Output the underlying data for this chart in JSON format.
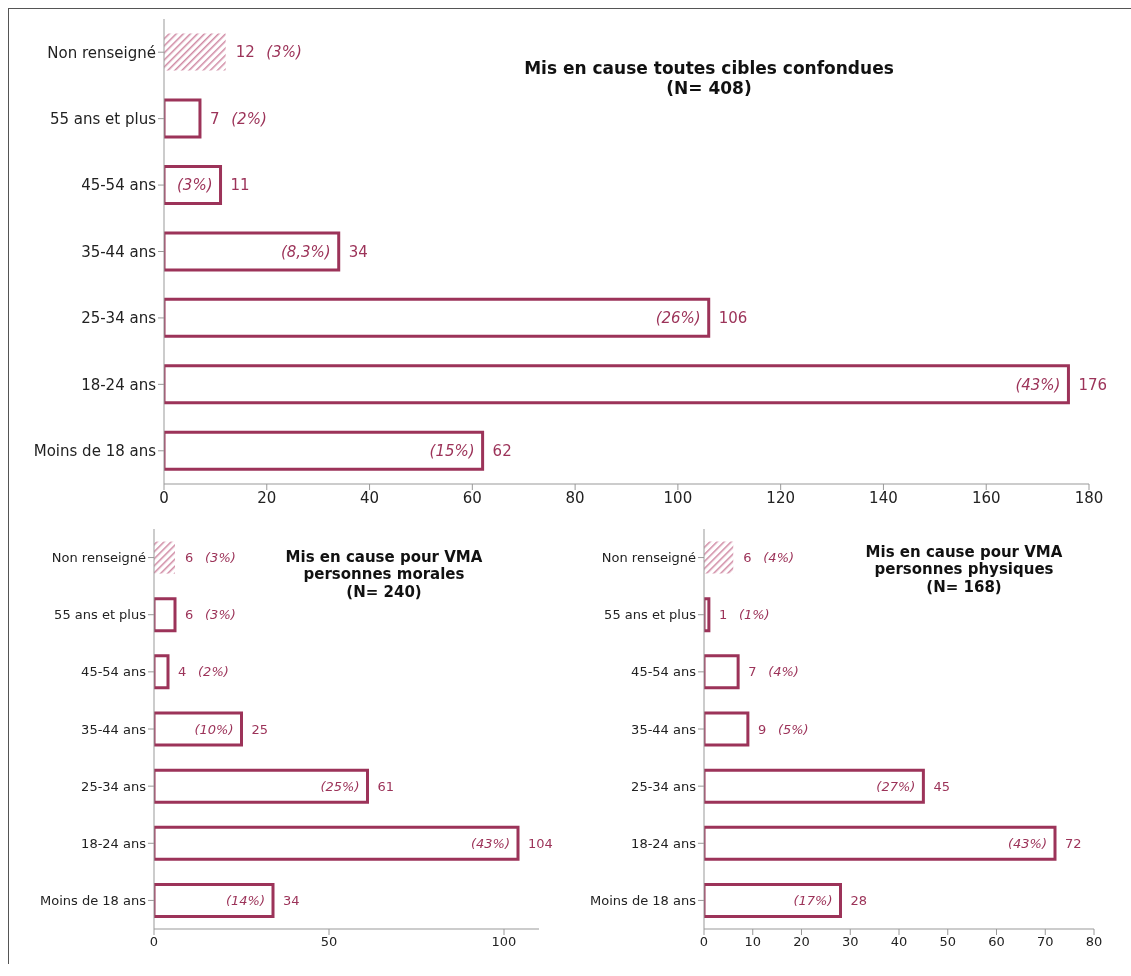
{
  "chart_data": [
    {
      "type": "bar",
      "orientation": "horizontal",
      "title": "Mis en cause toutes cibles confondues\n(N= 408)",
      "categories": [
        "Non renseigné",
        "55 ans et plus",
        "45-54 ans",
        "35-44 ans",
        "25-34 ans",
        "18-24 ans",
        "Moins de 18 ans"
      ],
      "values": [
        12,
        7,
        11,
        34,
        106,
        176,
        62
      ],
      "color": "#9c3359",
      "colors": [
        "#d08aa4",
        "#9c3359",
        "#9c3359",
        "#9c3359",
        "#9c3359",
        "#9c3359",
        "#9c3359"
      ],
      "xlim": [
        0,
        180
      ],
      "xticks": [
        0,
        20,
        40,
        60,
        80,
        100,
        120,
        140,
        160,
        180
      ],
      "grid": false,
      "legend": false,
      "data_labels": true,
      "annotations": [
        {
          "text": "(3%)",
          "x": 12,
          "y": "Non renseigné"
        },
        {
          "text": "(2%)",
          "x": 7,
          "y": "55 ans et plus"
        },
        {
          "text": "(3%)",
          "x": 11,
          "y": "45-54 ans"
        },
        {
          "text": "(8,3%)",
          "x": 34,
          "y": "35-44 ans"
        },
        {
          "text": "(26%)",
          "x": 106,
          "y": "25-34 ans"
        },
        {
          "text": "(43%)",
          "x": 176,
          "y": "18-24 ans"
        },
        {
          "text": "(15%)",
          "x": 62,
          "y": "Moins de 18 ans"
        }
      ]
    },
    {
      "type": "bar",
      "orientation": "horizontal",
      "title": "Mis en cause pour VMA\npersonnes morales\n(N= 240)",
      "categories": [
        "Non renseigné",
        "55 ans et plus",
        "45-54 ans",
        "35-44 ans",
        "25-34 ans",
        "18-24 ans",
        "Moins de 18 ans"
      ],
      "values": [
        6,
        6,
        4,
        25,
        61,
        104,
        34
      ],
      "color": "#9c3359",
      "colors": [
        "#d08aa4",
        "#9c3359",
        "#9c3359",
        "#9c3359",
        "#9c3359",
        "#9c3359",
        "#9c3359"
      ],
      "xlim": [
        0,
        110
      ],
      "xticks": [
        0,
        50,
        100
      ],
      "grid": false,
      "legend": false,
      "data_labels": true,
      "annotations": [
        {
          "text": "(3%)",
          "x": 6,
          "y": "Non renseigné"
        },
        {
          "text": "(3%)",
          "x": 6,
          "y": "55 ans et plus"
        },
        {
          "text": "(2%)",
          "x": 4,
          "y": "45-54 ans"
        },
        {
          "text": "(10%)",
          "x": 25,
          "y": "35-44 ans"
        },
        {
          "text": "(25%)",
          "x": 61,
          "y": "25-34 ans"
        },
        {
          "text": "(43%)",
          "x": 104,
          "y": "18-24 ans"
        },
        {
          "text": "(14%)",
          "x": 34,
          "y": "Moins de 18 ans"
        }
      ]
    },
    {
      "type": "bar",
      "orientation": "horizontal",
      "title": "Mis en cause pour VMA\npersonnes physiques\n(N= 168)",
      "categories": [
        "Non renseigné",
        "55 ans et plus",
        "45-54 ans",
        "35-44 ans",
        "25-34 ans",
        "18-24 ans",
        "Moins de 18 ans"
      ],
      "values": [
        6,
        1,
        7,
        9,
        45,
        72,
        28
      ],
      "color": "#9c3359",
      "colors": [
        "#d08aa4",
        "#9c3359",
        "#9c3359",
        "#9c3359",
        "#9c3359",
        "#9c3359",
        "#9c3359"
      ],
      "xlim": [
        0,
        80
      ],
      "xticks": [
        0,
        10,
        20,
        30,
        40,
        50,
        60,
        70,
        80
      ],
      "grid": false,
      "legend": false,
      "data_labels": true,
      "annotations": [
        {
          "text": "(4%)",
          "x": 6,
          "y": "Non renseigné"
        },
        {
          "text": "(1%)",
          "x": 1,
          "y": "55 ans et plus"
        },
        {
          "text": "(4%)",
          "x": 7,
          "y": "45-54 ans"
        },
        {
          "text": "(5%)",
          "x": 9,
          "y": "35-44 ans"
        },
        {
          "text": "(27%)",
          "x": 45,
          "y": "25-34 ans"
        },
        {
          "text": "(43%)",
          "x": 72,
          "y": "18-24 ans"
        },
        {
          "text": "(17%)",
          "x": 28,
          "y": "Moins de 18 ans"
        }
      ]
    }
  ]
}
